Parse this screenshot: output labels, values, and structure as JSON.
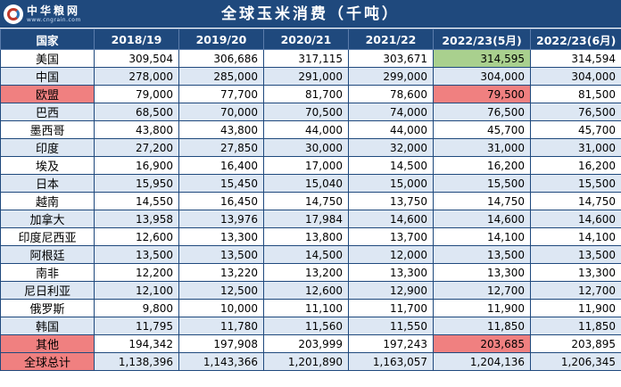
{
  "header": {
    "logo_text": "中华粮网",
    "logo_url": "www.cngrain.com",
    "title": "全球玉米消费（千吨）"
  },
  "table": {
    "columns": [
      "国家",
      "2018/19",
      "2019/20",
      "2020/21",
      "2021/22",
      "2022/23(5月)",
      "2022/23(6月)"
    ],
    "rows": [
      {
        "country": "美国",
        "values": [
          "309,504",
          "306,686",
          "317,115",
          "303,671",
          "314,595",
          "314,594"
        ]
      },
      {
        "country": "中国",
        "values": [
          "278,000",
          "285,000",
          "291,000",
          "299,000",
          "304,000",
          "304,000"
        ]
      },
      {
        "country": "欧盟",
        "values": [
          "79,000",
          "77,700",
          "81,700",
          "78,600",
          "79,500",
          "81,500"
        ]
      },
      {
        "country": "巴西",
        "values": [
          "68,500",
          "70,000",
          "70,500",
          "74,000",
          "76,500",
          "76,500"
        ]
      },
      {
        "country": "墨西哥",
        "values": [
          "43,800",
          "43,800",
          "44,000",
          "44,000",
          "45,700",
          "45,700"
        ]
      },
      {
        "country": "印度",
        "values": [
          "27,200",
          "27,850",
          "30,000",
          "32,000",
          "31,000",
          "31,000"
        ]
      },
      {
        "country": "埃及",
        "values": [
          "16,900",
          "16,400",
          "17,000",
          "14,500",
          "16,200",
          "16,200"
        ]
      },
      {
        "country": "日本",
        "values": [
          "15,950",
          "15,450",
          "15,040",
          "15,000",
          "15,500",
          "15,500"
        ]
      },
      {
        "country": "越南",
        "values": [
          "14,550",
          "16,450",
          "14,750",
          "13,750",
          "14,750",
          "14,750"
        ]
      },
      {
        "country": "加拿大",
        "values": [
          "13,958",
          "13,976",
          "17,984",
          "14,600",
          "14,600",
          "14,600"
        ]
      },
      {
        "country": "印度尼西亚",
        "values": [
          "12,600",
          "13,300",
          "13,800",
          "13,700",
          "14,100",
          "14,100"
        ]
      },
      {
        "country": "阿根廷",
        "values": [
          "13,500",
          "13,500",
          "14,500",
          "12,000",
          "13,500",
          "13,500"
        ]
      },
      {
        "country": "南非",
        "values": [
          "12,200",
          "13,220",
          "13,200",
          "13,300",
          "13,300",
          "13,300"
        ]
      },
      {
        "country": "尼日利亚",
        "values": [
          "12,100",
          "12,500",
          "12,600",
          "12,900",
          "12,700",
          "12,700"
        ]
      },
      {
        "country": "俄罗斯",
        "values": [
          "9,800",
          "10,000",
          "11,100",
          "11,700",
          "11,900",
          "11,900"
        ]
      },
      {
        "country": "韩国",
        "values": [
          "11,795",
          "11,780",
          "11,560",
          "11,550",
          "11,850",
          "11,850"
        ]
      },
      {
        "country": "其他",
        "values": [
          "194,342",
          "197,908",
          "203,999",
          "197,243",
          "203,685",
          "203,895"
        ]
      },
      {
        "country": "全球总计",
        "values": [
          "1,138,396",
          "1,143,366",
          "1,201,890",
          "1,163,057",
          "1,204,136",
          "1,206,345"
        ]
      }
    ]
  },
  "colors": {
    "header_bg": "#1f497d",
    "alt_row": "#dde7f3",
    "highlight_green": "#a9d08e",
    "highlight_red": "#f08080"
  }
}
